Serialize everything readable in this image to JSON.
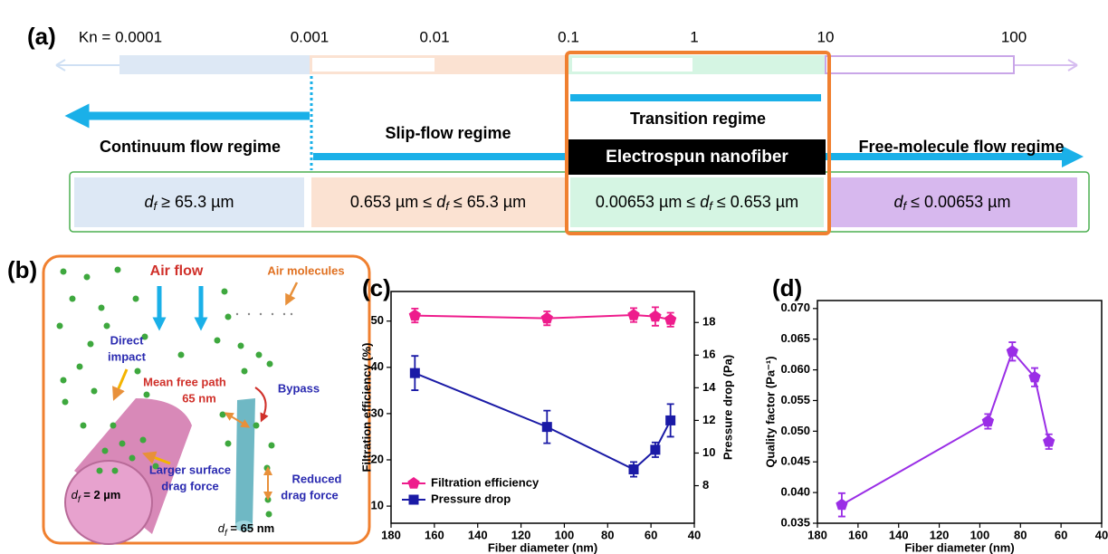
{
  "panel_a": {
    "label": "(a)",
    "kn": [
      "Kn = 0.0001",
      "0.001",
      "0.01",
      "0.1",
      "1",
      "10",
      "100"
    ],
    "regimes": [
      "Continuum flow regime",
      "Slip-flow regime",
      "Transition regime",
      "Free-molecule flow regime"
    ],
    "nanofiber": "Electrospun nanofiber",
    "ranges": [
      {
        "var": "d",
        "sub": "f",
        "after": " ≥ 65.3 µm"
      },
      {
        "before": "0.653 µm ≤ ",
        "var": "d",
        "sub": "f",
        "after": " ≤ 65.3 µm"
      },
      {
        "before": "0.00653 µm ≤ ",
        "var": "d",
        "sub": "f",
        "after": " ≤ 0.653 µm"
      },
      {
        "var": "d",
        "sub": "f",
        "after": " ≤ 0.00653 µm"
      }
    ]
  },
  "panel_b": {
    "label": "(b)",
    "air_flow": "Air flow",
    "air_molecules": "Air molecules",
    "direct_impact": [
      "Direct",
      "impact"
    ],
    "mean_free_path": [
      "Mean free path",
      "65 nm"
    ],
    "bypass": "Bypass",
    "larger_surface": [
      "Larger surface",
      "drag force"
    ],
    "reduced_drag": [
      "Reduced",
      "drag force"
    ],
    "large_fiber": {
      "var": "d",
      "sub": "f",
      "after": " = 2 µm"
    },
    "small_fiber": {
      "var": "d",
      "sub": "f",
      "after": " = 65 nm"
    }
  },
  "chart_data": [
    {
      "type": "line",
      "title": "(c)",
      "x": [
        169,
        108,
        68,
        58,
        51
      ],
      "xlim": [
        180,
        40
      ],
      "xticks": [
        180,
        160,
        140,
        120,
        100,
        80,
        60,
        40
      ],
      "xlabel": "Fiber diameter (nm)",
      "ylabel": "Filtration efficiency (%)",
      "ylim": [
        6.3,
        56.4
      ],
      "yticks": [
        10,
        20,
        30,
        40,
        50
      ],
      "y2label": "Pressure drop (Pa)",
      "y2lim": [
        5.7,
        19.9
      ],
      "y2ticks": [
        8,
        10,
        12,
        14,
        16,
        18
      ],
      "legend": "lower left",
      "series": [
        {
          "name": "Filtration efficiency",
          "color": "#ee1c8c",
          "marker": "pentagon",
          "values": [
            51.2,
            50.6,
            51.3,
            51.0,
            50.3
          ],
          "errors": [
            1.5,
            1.5,
            1.5,
            2,
            1.5
          ]
        },
        {
          "name": "Pressure drop",
          "color": "#1a1aa6",
          "marker": "square",
          "axis": "y2",
          "values": [
            14.9,
            11.6,
            9.0,
            10.2,
            12.0
          ],
          "errors": [
            1.05,
            1.0,
            0.45,
            0.45,
            1.0
          ]
        }
      ]
    },
    {
      "type": "line",
      "title": "(d)",
      "x": [
        168,
        96,
        84,
        73,
        66
      ],
      "xlim": [
        180,
        40
      ],
      "xticks": [
        180,
        160,
        140,
        120,
        100,
        80,
        60,
        40
      ],
      "xlabel": "Fiber diameter (nm)",
      "ylabel": "Quality factor (Pa⁻¹)",
      "ylim": [
        0.035,
        0.0713
      ],
      "yticks": [
        0.035,
        {
          "value": 0.04,
          "label": "0.040"
        },
        0.045,
        {
          "value": 0.05,
          "label": "0.050"
        },
        0.055,
        {
          "value": 0.06,
          "label": "0.060"
        },
        0.065,
        {
          "value": 0.07,
          "label": "0.070"
        }
      ],
      "series": [
        {
          "color": "#9a2ee6",
          "marker": "pentagon",
          "values": [
            0.038,
            0.0516,
            0.063,
            0.0588,
            0.0483
          ],
          "errors": [
            0.0019,
            0.0012,
            0.0015,
            0.0015,
            0.0012
          ]
        }
      ]
    }
  ]
}
